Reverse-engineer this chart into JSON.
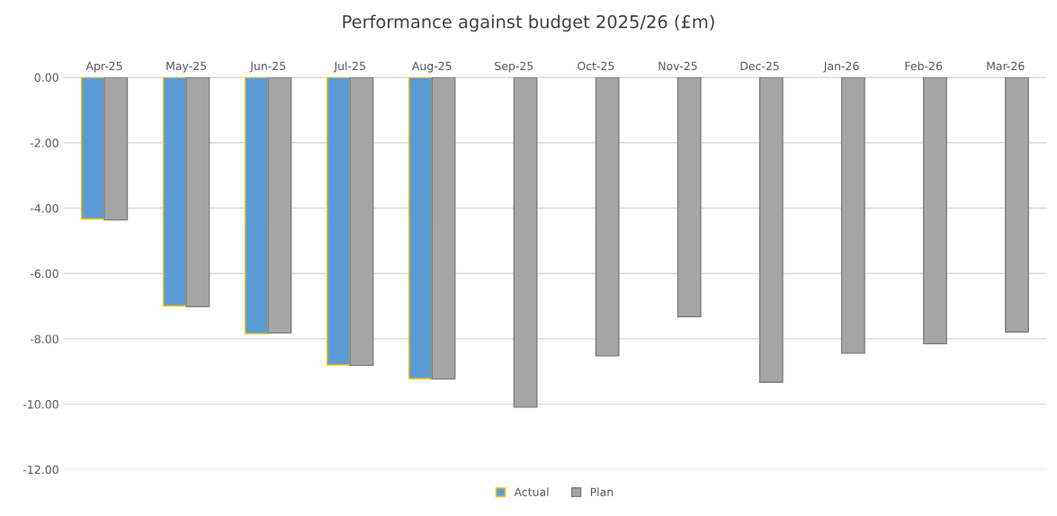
{
  "chart_data": {
    "type": "bar",
    "title": "Performance against budget 2025/26 (£m)",
    "categories": [
      "Apr-25",
      "May-25",
      "Jun-25",
      "Jul-25",
      "Aug-25",
      "Sep-25",
      "Oct-25",
      "Nov-25",
      "Dec-25",
      "Jan-26",
      "Feb-26",
      "Mar-26"
    ],
    "series": [
      {
        "name": "Actual",
        "color": "#5b9bd5",
        "values": [
          -4.33,
          -6.99,
          -7.84,
          -8.8,
          -9.22,
          null,
          null,
          null,
          null,
          null,
          null,
          null
        ]
      },
      {
        "name": "Plan",
        "color": "#a5a5a5",
        "values": [
          -4.36,
          -7.01,
          -7.82,
          -8.81,
          -9.23,
          -10.09,
          -8.52,
          -7.32,
          -9.33,
          -8.44,
          -8.15,
          -7.79
        ]
      }
    ],
    "ylim": [
      -12,
      0
    ],
    "yticks": [
      {
        "value": -12,
        "label": "-12.00"
      },
      {
        "value": -10,
        "label": "-10.00"
      },
      {
        "value": -8,
        "label": "-8.00"
      },
      {
        "value": -6,
        "label": "-6.00"
      },
      {
        "value": -4,
        "label": "-4.00"
      },
      {
        "value": -2,
        "label": "-2.00"
      },
      {
        "value": 0,
        "label": "0.00"
      }
    ],
    "grid": "y",
    "legend": "bottom"
  }
}
